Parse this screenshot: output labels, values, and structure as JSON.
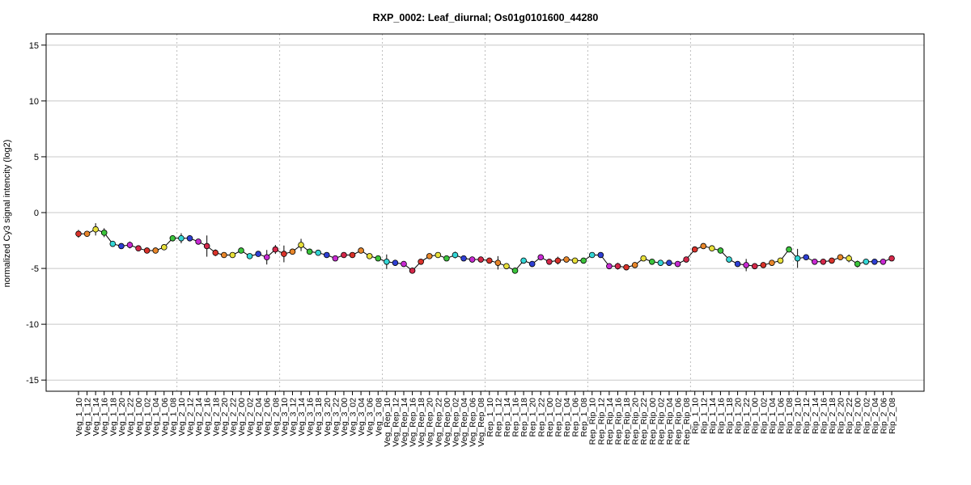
{
  "chart_data": {
    "type": "line",
    "title": "RXP_0002: Leaf_diurnal; Os01g0101600_44280",
    "xlabel": "",
    "ylabel": "normalized Cy3 signal intencity (log2)",
    "ylim": [
      -16,
      16
    ],
    "yticks": [
      -15,
      -10,
      -5,
      0,
      5,
      10,
      15
    ],
    "grid": "horizontal",
    "categories": [
      "Veg_1_10",
      "Veg_1_12",
      "Veg_1_14",
      "Veg_1_16",
      "Veg_1_18",
      "Veg_1_20",
      "Veg_1_22",
      "Veg_1_00",
      "Veg_1_02",
      "Veg_1_04",
      "Veg_1_06",
      "Veg_1_08",
      "Veg_2_10",
      "Veg_2_12",
      "Veg_2_14",
      "Veg_2_16",
      "Veg_2_18",
      "Veg_2_20",
      "Veg_2_22",
      "Veg_2_00",
      "Veg_2_02",
      "Veg_2_04",
      "Veg_2_06",
      "Veg_2_08",
      "Veg_3_10",
      "Veg_3_12",
      "Veg_3_14",
      "Veg_3_16",
      "Veg_3_18",
      "Veg_3_20",
      "Veg_3_22",
      "Veg_3_00",
      "Veg_3_02",
      "Veg_3_04",
      "Veg_3_06",
      "Veg_3_08",
      "Veg_Rep_10",
      "Veg_Rep_12",
      "Veg_Rep_14",
      "Veg_Rep_16",
      "Veg_Rep_18",
      "Veg_Rep_20",
      "Veg_Rep_22",
      "Veg_Rep_00",
      "Veg_Rep_02",
      "Veg_Rep_04",
      "Veg_Rep_06",
      "Veg_Rep_08",
      "Rep_1_10",
      "Rep_1_12",
      "Rep_1_14",
      "Rep_1_16",
      "Rep_1_18",
      "Rep_1_20",
      "Rep_1_22",
      "Rep_1_00",
      "Rep_1_02",
      "Rep_1_04",
      "Rep_1_06",
      "Rep_1_08",
      "Rep_Rip_10",
      "Rep_Rip_12",
      "Rep_Rip_14",
      "Rep_Rip_16",
      "Rep_Rip_18",
      "Rep_Rip_20",
      "Rep_Rip_22",
      "Rep_Rip_00",
      "Rep_Rip_02",
      "Rep_Rip_04",
      "Rep_Rip_06",
      "Rep_Rip_08",
      "Rip_1_10",
      "Rip_1_12",
      "Rip_1_14",
      "Rip_1_16",
      "Rip_1_18",
      "Rip_1_20",
      "Rip_1_22",
      "Rip_1_00",
      "Rip_1_02",
      "Rip_1_04",
      "Rip_1_06",
      "Rip_1_08",
      "Rip_2_10",
      "Rip_2_12",
      "Rip_2_14",
      "Rip_2_16",
      "Rip_2_18",
      "Rip_2_20",
      "Rip_2_22",
      "Rip_2_00",
      "Rip_2_02",
      "Rip_2_04",
      "Rip_2_06",
      "Rip_2_08"
    ],
    "values": [
      -1.9,
      -1.9,
      -1.5,
      -1.8,
      -2.8,
      -3.0,
      -2.9,
      -3.2,
      -3.4,
      -3.4,
      -3.1,
      -2.3,
      -2.3,
      -2.3,
      -2.6,
      -3.0,
      -3.6,
      -3.8,
      -3.8,
      -3.4,
      -3.9,
      -3.7,
      -4.0,
      -3.3,
      -3.7,
      -3.5,
      -2.9,
      -3.5,
      -3.6,
      -3.8,
      -4.1,
      -3.8,
      -3.8,
      -3.4,
      -3.9,
      -4.1,
      -4.4,
      -4.5,
      -4.6,
      -5.2,
      -4.4,
      -3.9,
      -3.8,
      -4.1,
      -3.8,
      -4.1,
      -4.2,
      -4.2,
      -4.3,
      -4.5,
      -4.8,
      -5.2,
      -4.3,
      -4.6,
      -4.0,
      -4.4,
      -4.3,
      -4.2,
      -4.3,
      -4.3,
      -3.8,
      -3.8,
      -4.8,
      -4.8,
      -4.9,
      -4.7,
      -4.1,
      -4.4,
      -4.5,
      -4.5,
      -4.6,
      -4.2,
      -3.3,
      -3.0,
      -3.2,
      -3.4,
      -4.2,
      -4.6,
      -4.7,
      -4.8,
      -4.7,
      -4.5,
      -4.3,
      -3.3,
      -4.1,
      -4.0,
      -4.4,
      -4.4,
      -4.3,
      -4.0,
      -4.1,
      -4.6,
      -4.4,
      -4.4,
      -4.4,
      -4.1
    ],
    "errors": [
      0.35,
      0.15,
      0.55,
      0.4,
      0.15,
      0.1,
      0.3,
      0.15,
      0.15,
      0.15,
      0.15,
      0.15,
      0.45,
      0.15,
      0.2,
      0.95,
      0.3,
      0.15,
      0.15,
      0.2,
      0.15,
      0.2,
      0.65,
      0.4,
      0.75,
      0.2,
      0.55,
      0.2,
      0.2,
      0.15,
      0.15,
      0.2,
      0.15,
      0.2,
      0.15,
      0.15,
      0.65,
      0.15,
      0.15,
      0.2,
      0.25,
      0.15,
      0.15,
      0.15,
      0.3,
      0.15,
      0.15,
      0.15,
      0.25,
      0.6,
      0.15,
      0.2,
      0.2,
      0.15,
      0.15,
      0.2,
      0.35,
      0.2,
      0.15,
      0.15,
      0.15,
      0.15,
      0.2,
      0.3,
      0.15,
      0.15,
      0.15,
      0.15,
      0.15,
      0.15,
      0.2,
      0.15,
      0.2,
      0.15,
      0.15,
      0.15,
      0.2,
      0.15,
      0.55,
      0.2,
      0.15,
      0.15,
      0.15,
      0.15,
      0.85,
      0.2,
      0.15,
      0.15,
      0.2,
      0.15,
      0.35,
      0.3,
      0.15,
      0.15,
      0.15,
      0.15
    ],
    "palette": [
      "#d9322a",
      "#e8862a",
      "#e8e03a",
      "#3bc43b",
      "#33d6d6",
      "#2e3fd4",
      "#c82ad2",
      "#d4284a"
    ],
    "group_boundaries_after_index": [
      11,
      23,
      35,
      47,
      59,
      71,
      83
    ],
    "line_color": "#000000",
    "grid_color": "#c8c8c8"
  }
}
